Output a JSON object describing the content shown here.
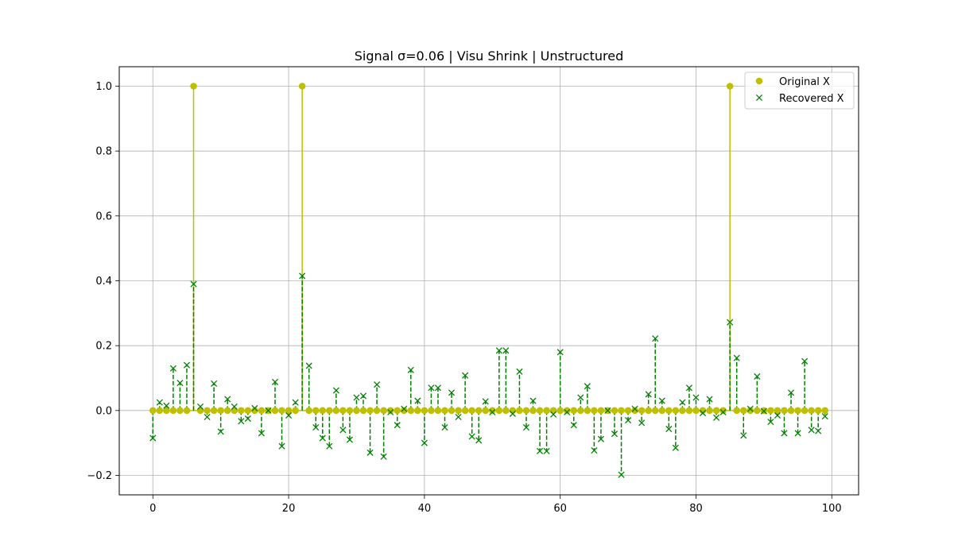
{
  "chart_data": {
    "type": "scatter",
    "title": "Signal σ=0.06 | Visu Shrink | Unstructured",
    "xlabel": "",
    "ylabel": "",
    "xlim": [
      -4.95,
      103.95
    ],
    "ylim": [
      -0.26,
      1.06
    ],
    "xticks": [
      0,
      20,
      40,
      60,
      80,
      100
    ],
    "yticks": [
      -0.2,
      0.0,
      0.2,
      0.4,
      0.6,
      0.8,
      1.0
    ],
    "xtick_labels": [
      "0",
      "20",
      "40",
      "60",
      "80",
      "100"
    ],
    "ytick_labels": [
      "−0.2",
      "0.0",
      "0.2",
      "0.4",
      "0.6",
      "0.8",
      "1.0"
    ],
    "grid": true,
    "legend_position": "top-right",
    "x": [
      0,
      1,
      2,
      3,
      4,
      5,
      6,
      7,
      8,
      9,
      10,
      11,
      12,
      13,
      14,
      15,
      16,
      17,
      18,
      19,
      20,
      21,
      22,
      23,
      24,
      25,
      26,
      27,
      28,
      29,
      30,
      31,
      32,
      33,
      34,
      35,
      36,
      37,
      38,
      39,
      40,
      41,
      42,
      43,
      44,
      45,
      46,
      47,
      48,
      49,
      50,
      51,
      52,
      53,
      54,
      55,
      56,
      57,
      58,
      59,
      60,
      61,
      62,
      63,
      64,
      65,
      66,
      67,
      68,
      69,
      70,
      71,
      72,
      73,
      74,
      75,
      76,
      77,
      78,
      79,
      80,
      81,
      82,
      83,
      84,
      85,
      86,
      87,
      88,
      89,
      90,
      91,
      92,
      93,
      94,
      95,
      96,
      97,
      98,
      99
    ],
    "series": [
      {
        "name": "Original X",
        "style": "stem-solid-circle",
        "color": "#bfbf00",
        "values": [
          0,
          0,
          0,
          0,
          0,
          0,
          1,
          0,
          0,
          0,
          0,
          0,
          0,
          0,
          0,
          0,
          0,
          0,
          0,
          0,
          0,
          0,
          1,
          0,
          0,
          0,
          0,
          0,
          0,
          0,
          0,
          0,
          0,
          0,
          0,
          0,
          0,
          0,
          0,
          0,
          0,
          0,
          0,
          0,
          0,
          0,
          0,
          0,
          0,
          0,
          0,
          0,
          0,
          0,
          0,
          0,
          0,
          0,
          0,
          0,
          0,
          0,
          0,
          0,
          0,
          0,
          0,
          0,
          0,
          0,
          0,
          0,
          0,
          0,
          0,
          0,
          0,
          0,
          0,
          0,
          0,
          0,
          0,
          0,
          0,
          1,
          0,
          0,
          0,
          0,
          0,
          0,
          0,
          0,
          0,
          0,
          0,
          0,
          0,
          0
        ]
      },
      {
        "name": "Recovered X",
        "style": "stem-dashed-x",
        "color": "#008000",
        "values": [
          -0.085,
          0.025,
          0.015,
          0.13,
          0.085,
          0.14,
          0.39,
          0.012,
          -0.02,
          0.083,
          -0.065,
          0.035,
          0.012,
          -0.033,
          -0.025,
          0.007,
          -0.07,
          0.0,
          0.088,
          -0.11,
          -0.015,
          0.025,
          0.415,
          0.138,
          -0.052,
          -0.085,
          -0.11,
          0.062,
          -0.06,
          -0.09,
          0.04,
          0.045,
          -0.13,
          0.08,
          -0.142,
          -0.005,
          -0.045,
          0.005,
          0.125,
          0.03,
          -0.1,
          0.07,
          0.07,
          -0.052,
          0.055,
          -0.02,
          0.108,
          -0.08,
          -0.092,
          0.028,
          -0.005,
          0.185,
          0.185,
          -0.01,
          0.12,
          -0.052,
          0.03,
          -0.125,
          -0.125,
          -0.012,
          0.18,
          -0.005,
          -0.045,
          0.04,
          0.075,
          -0.123,
          -0.088,
          0.0,
          -0.072,
          -0.198,
          -0.03,
          0.005,
          -0.038,
          0.05,
          0.222,
          0.03,
          -0.057,
          -0.115,
          0.025,
          0.07,
          0.04,
          -0.008,
          0.035,
          -0.022,
          -0.005,
          0.272,
          0.162,
          -0.077,
          0.005,
          0.105,
          -0.002,
          -0.035,
          -0.015,
          -0.07,
          0.055,
          -0.07,
          0.152,
          -0.06,
          -0.063,
          -0.018
        ]
      }
    ]
  }
}
